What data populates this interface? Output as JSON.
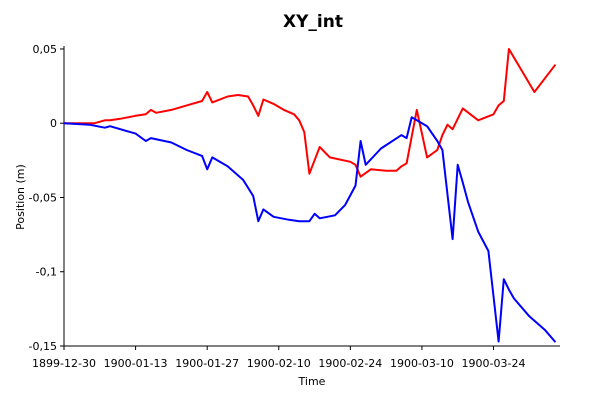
{
  "chart_data": {
    "type": "line",
    "title": "XY_int",
    "xlabel": "Time",
    "ylabel": "Position (m)",
    "x_type": "date",
    "xlim": [
      "1899-12-30",
      "1900-04-06"
    ],
    "ylim": [
      -0.15,
      0.052
    ],
    "y_ticks": [
      0.05,
      0,
      -0.05,
      -0.1,
      -0.15
    ],
    "y_tick_labels": [
      "0,05",
      "0",
      "-0,05",
      "-0,1",
      "-0,15"
    ],
    "x_ticks": [
      "1899-12-30",
      "1900-01-13",
      "1900-01-27",
      "1900-02-10",
      "1900-02-24",
      "1900-03-10",
      "1900-03-24"
    ],
    "x_tick_labels": [
      "1899-12-30",
      "1900-01-13",
      "1900-01-27",
      "1900-02-10",
      "1900-02-24",
      "1900-03-10",
      "1900-03-24"
    ],
    "grid": false,
    "series": [
      {
        "color": "#ff0000",
        "x": [
          "1899-12-30",
          "1900-01-02",
          "1900-01-05",
          "1900-01-07",
          "1900-01-08",
          "1900-01-10",
          "1900-01-13",
          "1900-01-15",
          "1900-01-16",
          "1900-01-17",
          "1900-01-20",
          "1900-01-23",
          "1900-01-26",
          "1900-01-27",
          "1900-01-28",
          "1900-01-31",
          "1900-02-02",
          "1900-02-04",
          "1900-02-05",
          "1900-02-06",
          "1900-02-07",
          "1900-02-09",
          "1900-02-11",
          "1900-02-13",
          "1900-02-14",
          "1900-02-15",
          "1900-02-16",
          "1900-02-18",
          "1900-02-20",
          "1900-02-24",
          "1900-02-25",
          "1900-02-26",
          "1900-02-28",
          "1900-03-03",
          "1900-03-05",
          "1900-03-06",
          "1900-03-07",
          "1900-03-09",
          "1900-03-11",
          "1900-03-13",
          "1900-03-14",
          "1900-03-15",
          "1900-03-16",
          "1900-03-18",
          "1900-03-21",
          "1900-03-24",
          "1900-03-25",
          "1900-03-26",
          "1900-03-27",
          "1900-04-01",
          "1900-04-05"
        ],
        "y": [
          0,
          0,
          0,
          0.002,
          0.002,
          0.003,
          0.005,
          0.006,
          0.009,
          0.007,
          0.009,
          0.012,
          0.015,
          0.021,
          0.014,
          0.018,
          0.019,
          0.018,
          0.012,
          0.005,
          0.016,
          0.013,
          0.009,
          0.006,
          0.002,
          -0.006,
          -0.034,
          -0.016,
          -0.023,
          -0.026,
          -0.028,
          -0.036,
          -0.031,
          -0.032,
          -0.032,
          -0.029,
          -0.027,
          0.009,
          -0.023,
          -0.018,
          -0.008,
          -0.001,
          -0.004,
          0.01,
          0.002,
          0.006,
          0.012,
          0.015,
          0.05,
          0.021,
          0.039
        ]
      },
      {
        "color": "#0000ff",
        "x": [
          "1899-12-30",
          "1900-01-04",
          "1900-01-07",
          "1900-01-08",
          "1900-01-13",
          "1900-01-15",
          "1900-01-16",
          "1900-01-20",
          "1900-01-23",
          "1900-01-26",
          "1900-01-27",
          "1900-01-28",
          "1900-01-31",
          "1900-02-03",
          "1900-02-05",
          "1900-02-06",
          "1900-02-07",
          "1900-02-09",
          "1900-02-12",
          "1900-02-14",
          "1900-02-16",
          "1900-02-17",
          "1900-02-18",
          "1900-02-21",
          "1900-02-23",
          "1900-02-25",
          "1900-02-26",
          "1900-02-27",
          "1900-03-02",
          "1900-03-06",
          "1900-03-07",
          "1900-03-08",
          "1900-03-11",
          "1900-03-13",
          "1900-03-14",
          "1900-03-16",
          "1900-03-17",
          "1900-03-18",
          "1900-03-19",
          "1900-03-21",
          "1900-03-23",
          "1900-03-25",
          "1900-03-26",
          "1900-03-27",
          "1900-03-28",
          "1900-03-31",
          "1900-04-03",
          "1900-04-05"
        ],
        "y": [
          0,
          -0.001,
          -0.003,
          -0.002,
          -0.007,
          -0.012,
          -0.01,
          -0.013,
          -0.018,
          -0.022,
          -0.031,
          -0.023,
          -0.029,
          -0.038,
          -0.049,
          -0.066,
          -0.058,
          -0.063,
          -0.065,
          -0.066,
          -0.066,
          -0.061,
          -0.064,
          -0.062,
          -0.055,
          -0.042,
          -0.012,
          -0.028,
          -0.017,
          -0.008,
          -0.01,
          0.004,
          -0.002,
          -0.012,
          -0.018,
          -0.078,
          -0.028,
          -0.04,
          -0.053,
          -0.073,
          -0.086,
          -0.147,
          -0.105,
          -0.112,
          -0.118,
          -0.13,
          -0.139,
          -0.147
        ]
      }
    ]
  }
}
